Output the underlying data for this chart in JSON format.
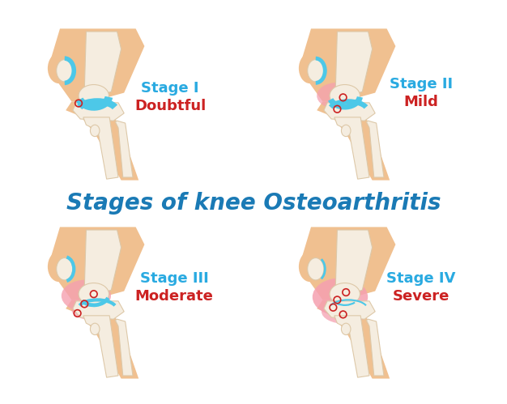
{
  "title": "Stages of knee Osteoarthritis",
  "title_color": "#1a7ab5",
  "title_fontsize": 20,
  "background_color": "#ffffff",
  "stages": [
    {
      "label": "Stage I",
      "sublabel": "Doubtful"
    },
    {
      "label": "Stage II",
      "sublabel": "Mild"
    },
    {
      "label": "Stage III",
      "sublabel": "Moderate"
    },
    {
      "label": "Stage IV",
      "sublabel": "Severe"
    }
  ],
  "label_color": "#29aae1",
  "sublabel_color": "#cc2222",
  "bone_color": "#f5ede0",
  "bone_outline": "#ddc8a8",
  "skin_color": "#f0c090",
  "skin_color2": "#eab878",
  "cartilage_color": "#4dc8e8",
  "inflammation_color": "#f5a0b0",
  "label_fontsize": 12,
  "sublabel_fontsize": 12
}
